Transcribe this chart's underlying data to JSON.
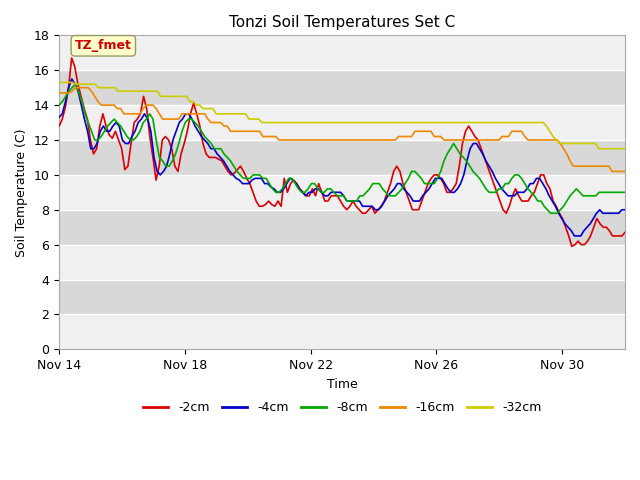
{
  "title": "Tonzi Soil Temperatures Set C",
  "xlabel": "Time",
  "ylabel": "Soil Temperature (C)",
  "annotation_text": "TZ_fmet",
  "annotation_color": "#cc0000",
  "annotation_bg": "#ffffcc",
  "annotation_border": "#999966",
  "ylim": [
    0,
    18
  ],
  "yticks": [
    0,
    2,
    4,
    6,
    8,
    10,
    12,
    14,
    16,
    18
  ],
  "xtick_labels": [
    "Nov 14",
    "Nov 18",
    "Nov 22",
    "Nov 26",
    "Nov 30"
  ],
  "xtick_positions": [
    0,
    4,
    8,
    12,
    16
  ],
  "legend_labels": [
    "-2cm",
    "-4cm",
    "-8cm",
    "-16cm",
    "-32cm"
  ],
  "legend_colors": [
    "#dd0000",
    "#0000cc",
    "#00aa00",
    "#ee8800",
    "#cccc00"
  ],
  "line_colors": [
    "#dd0000",
    "#0000cc",
    "#00aa00",
    "#ee8800",
    "#cccc00"
  ],
  "bg_color": "#ffffff",
  "plot_bg_light": "#f0f0f0",
  "plot_bg_dark": "#d8d8d8",
  "grid_color": "#ffffff",
  "band_pairs": [
    [
      0,
      2
    ],
    [
      4,
      6
    ],
    [
      8,
      10
    ],
    [
      12,
      14
    ],
    [
      16,
      18
    ]
  ],
  "dark_bands": [
    [
      2,
      4
    ],
    [
      6,
      8
    ],
    [
      10,
      12
    ],
    [
      14,
      16
    ]
  ],
  "total_days": 18,
  "series_2cm": [
    12.8,
    13.2,
    13.9,
    15.0,
    16.7,
    16.2,
    15.2,
    14.5,
    13.8,
    13.2,
    12.0,
    11.2,
    11.5,
    12.8,
    13.5,
    12.8,
    12.3,
    12.1,
    12.5,
    12.0,
    11.5,
    10.3,
    10.5,
    11.8,
    13.0,
    13.2,
    13.5,
    14.5,
    13.8,
    12.2,
    11.0,
    9.7,
    10.5,
    12.0,
    12.2,
    12.0,
    11.5,
    10.5,
    10.2,
    11.2,
    11.8,
    12.5,
    13.5,
    14.1,
    13.5,
    12.8,
    11.8,
    11.2,
    11.0,
    11.0,
    11.0,
    10.9,
    10.8,
    10.5,
    10.2,
    10.0,
    10.1,
    10.3,
    10.5,
    10.2,
    9.8,
    9.5,
    9.0,
    8.5,
    8.2,
    8.2,
    8.3,
    8.5,
    8.3,
    8.2,
    8.5,
    8.2,
    9.8,
    9.0,
    9.5,
    9.7,
    9.5,
    9.2,
    9.0,
    8.8,
    8.8,
    9.2,
    8.8,
    9.5,
    9.0,
    8.5,
    8.5,
    8.8,
    8.8,
    8.8,
    8.5,
    8.2,
    8.0,
    8.2,
    8.5,
    8.2,
    8.0,
    7.8,
    7.8,
    8.0,
    8.2,
    7.8,
    8.0,
    8.2,
    8.5,
    9.0,
    9.5,
    10.2,
    10.5,
    10.2,
    9.5,
    9.0,
    8.5,
    8.0,
    8.0,
    8.0,
    8.5,
    9.0,
    9.5,
    9.8,
    10.0,
    10.0,
    9.8,
    9.5,
    9.0,
    9.0,
    9.2,
    9.5,
    10.5,
    11.8,
    12.5,
    12.8,
    12.5,
    12.2,
    12.0,
    11.5,
    11.0,
    10.5,
    10.0,
    9.5,
    9.0,
    8.5,
    8.0,
    7.8,
    8.2,
    8.8,
    9.2,
    8.8,
    8.5,
    8.5,
    8.5,
    8.8,
    9.0,
    9.5,
    10.0,
    10.0,
    9.5,
    9.2,
    8.5,
    8.2,
    7.8,
    7.5,
    7.0,
    6.5,
    5.9,
    6.0,
    6.2,
    6.0,
    6.0,
    6.2,
    6.5,
    7.0,
    7.5,
    7.2,
    7.0,
    7.0,
    6.8,
    6.5,
    6.5,
    6.5,
    6.5,
    6.7
  ],
  "series_4cm": [
    13.3,
    13.5,
    14.2,
    15.0,
    15.5,
    15.2,
    14.8,
    14.0,
    13.2,
    12.5,
    11.5,
    11.5,
    11.8,
    12.5,
    12.8,
    12.5,
    12.5,
    12.8,
    13.0,
    12.8,
    12.0,
    11.8,
    11.8,
    12.2,
    12.5,
    13.0,
    13.2,
    13.5,
    13.2,
    12.5,
    11.0,
    10.2,
    10.0,
    10.2,
    10.5,
    11.2,
    12.0,
    12.5,
    13.0,
    13.2,
    13.5,
    13.5,
    13.2,
    12.8,
    12.5,
    12.2,
    12.0,
    11.8,
    11.5,
    11.5,
    11.2,
    11.0,
    10.8,
    10.5,
    10.2,
    10.0,
    9.8,
    9.7,
    9.5,
    9.5,
    9.5,
    9.7,
    9.8,
    9.8,
    9.8,
    9.5,
    9.5,
    9.3,
    9.2,
    9.0,
    9.0,
    9.2,
    9.5,
    9.8,
    9.7,
    9.5,
    9.2,
    9.0,
    8.8,
    9.0,
    9.0,
    9.2,
    9.2,
    9.0,
    8.8,
    8.8,
    9.0,
    9.0,
    9.0,
    9.0,
    8.8,
    8.5,
    8.5,
    8.5,
    8.5,
    8.5,
    8.2,
    8.2,
    8.2,
    8.2,
    8.0,
    8.0,
    8.2,
    8.5,
    8.8,
    9.0,
    9.2,
    9.5,
    9.5,
    9.2,
    9.0,
    8.8,
    8.5,
    8.5,
    8.5,
    8.8,
    9.0,
    9.2,
    9.5,
    9.8,
    9.8,
    9.8,
    9.5,
    9.2,
    9.0,
    9.0,
    9.2,
    9.5,
    10.0,
    10.8,
    11.5,
    11.8,
    11.8,
    11.5,
    11.2,
    10.8,
    10.5,
    10.2,
    9.8,
    9.5,
    9.2,
    9.0,
    8.8,
    8.8,
    8.8,
    9.0,
    9.0,
    9.0,
    9.2,
    9.5,
    9.5,
    9.8,
    9.8,
    9.5,
    9.2,
    8.8,
    8.5,
    8.2,
    7.8,
    7.5,
    7.2,
    7.0,
    6.8,
    6.5,
    6.5,
    6.5,
    6.8,
    7.0,
    7.2,
    7.5,
    7.8,
    8.0,
    7.8,
    7.8,
    7.8,
    7.8,
    7.8,
    7.8,
    8.0,
    8.0
  ],
  "series_8cm": [
    14.0,
    14.2,
    14.5,
    14.8,
    15.0,
    15.2,
    14.8,
    14.2,
    13.5,
    13.0,
    12.5,
    12.0,
    12.0,
    12.2,
    12.5,
    12.8,
    13.0,
    13.2,
    13.0,
    12.8,
    12.5,
    12.2,
    12.0,
    12.0,
    12.2,
    12.5,
    13.0,
    13.2,
    13.5,
    13.2,
    12.0,
    11.0,
    10.8,
    10.5,
    10.5,
    10.8,
    11.2,
    11.8,
    12.5,
    13.0,
    13.2,
    13.2,
    13.0,
    12.8,
    12.5,
    12.2,
    12.0,
    11.8,
    11.5,
    11.5,
    11.5,
    11.2,
    11.0,
    10.8,
    10.5,
    10.2,
    10.0,
    9.8,
    9.8,
    9.8,
    10.0,
    10.0,
    10.0,
    9.8,
    9.8,
    9.5,
    9.2,
    9.0,
    9.0,
    9.2,
    9.5,
    9.8,
    9.8,
    9.5,
    9.2,
    9.0,
    9.0,
    9.2,
    9.5,
    9.5,
    9.2,
    9.0,
    9.0,
    9.2,
    9.2,
    9.0,
    8.8,
    8.8,
    8.8,
    8.5,
    8.5,
    8.5,
    8.5,
    8.8,
    8.8,
    9.0,
    9.2,
    9.5,
    9.5,
    9.5,
    9.2,
    9.0,
    8.8,
    8.8,
    8.8,
    9.0,
    9.2,
    9.5,
    9.8,
    10.2,
    10.2,
    10.0,
    9.8,
    9.5,
    9.5,
    9.5,
    9.5,
    9.8,
    10.2,
    10.8,
    11.2,
    11.5,
    11.8,
    11.5,
    11.2,
    11.0,
    10.8,
    10.5,
    10.2,
    10.0,
    9.8,
    9.5,
    9.2,
    9.0,
    9.0,
    9.0,
    9.2,
    9.2,
    9.5,
    9.5,
    9.8,
    10.0,
    10.0,
    9.8,
    9.5,
    9.2,
    9.0,
    8.8,
    8.5,
    8.5,
    8.2,
    8.0,
    7.8,
    7.8,
    7.8,
    8.0,
    8.2,
    8.5,
    8.8,
    9.0,
    9.2,
    9.0,
    8.8,
    8.8,
    8.8,
    8.8,
    8.8,
    9.0,
    9.0,
    9.0,
    9.0,
    9.0,
    9.0,
    9.0,
    9.0,
    9.0
  ],
  "series_16cm": [
    14.7,
    14.7,
    14.7,
    14.7,
    14.8,
    15.0,
    15.0,
    15.0,
    15.0,
    15.0,
    14.8,
    14.5,
    14.2,
    14.0,
    14.0,
    14.0,
    14.0,
    14.0,
    13.8,
    13.8,
    13.5,
    13.5,
    13.5,
    13.5,
    13.5,
    13.5,
    13.8,
    14.0,
    14.0,
    14.0,
    13.8,
    13.5,
    13.2,
    13.2,
    13.2,
    13.2,
    13.2,
    13.2,
    13.5,
    13.5,
    13.5,
    13.5,
    13.5,
    13.5,
    13.5,
    13.5,
    13.2,
    13.0,
    13.0,
    13.0,
    13.0,
    12.8,
    12.8,
    12.5,
    12.5,
    12.5,
    12.5,
    12.5,
    12.5,
    12.5,
    12.5,
    12.5,
    12.5,
    12.2,
    12.2,
    12.2,
    12.2,
    12.2,
    12.0,
    12.0,
    12.0,
    12.0,
    12.0,
    12.0,
    12.0,
    12.0,
    12.0,
    12.0,
    12.0,
    12.0,
    12.0,
    12.0,
    12.0,
    12.0,
    12.0,
    12.0,
    12.0,
    12.0,
    12.0,
    12.0,
    12.0,
    12.0,
    12.0,
    12.0,
    12.0,
    12.0,
    12.0,
    12.0,
    12.0,
    12.0,
    12.0,
    12.0,
    12.0,
    12.0,
    12.0,
    12.2,
    12.2,
    12.2,
    12.2,
    12.2,
    12.5,
    12.5,
    12.5,
    12.5,
    12.5,
    12.5,
    12.2,
    12.2,
    12.2,
    12.0,
    12.0,
    12.0,
    12.0,
    12.0,
    12.0,
    12.0,
    12.0,
    12.0,
    12.0,
    12.0,
    12.0,
    12.0,
    12.0,
    12.0,
    12.0,
    12.0,
    12.0,
    12.2,
    12.2,
    12.2,
    12.5,
    12.5,
    12.5,
    12.5,
    12.2,
    12.0,
    12.0,
    12.0,
    12.0,
    12.0,
    12.0,
    12.0,
    12.0,
    12.0,
    12.0,
    11.8,
    11.5,
    11.2,
    10.8,
    10.5,
    10.5,
    10.5,
    10.5,
    10.5,
    10.5,
    10.5,
    10.5,
    10.5,
    10.5,
    10.5,
    10.5,
    10.2,
    10.2,
    10.2,
    10.2,
    10.2
  ],
  "series_32cm": [
    15.3,
    15.3,
    15.3,
    15.3,
    15.3,
    15.2,
    15.2,
    15.2,
    15.2,
    15.2,
    15.2,
    15.2,
    15.0,
    15.0,
    15.0,
    15.0,
    15.0,
    15.0,
    14.8,
    14.8,
    14.8,
    14.8,
    14.8,
    14.8,
    14.8,
    14.8,
    14.8,
    14.8,
    14.8,
    14.8,
    14.8,
    14.5,
    14.5,
    14.5,
    14.5,
    14.5,
    14.5,
    14.5,
    14.5,
    14.5,
    14.2,
    14.2,
    14.0,
    14.0,
    13.8,
    13.8,
    13.8,
    13.8,
    13.5,
    13.5,
    13.5,
    13.5,
    13.5,
    13.5,
    13.5,
    13.5,
    13.5,
    13.5,
    13.2,
    13.2,
    13.2,
    13.2,
    13.0,
    13.0,
    13.0,
    13.0,
    13.0,
    13.0,
    13.0,
    13.0,
    13.0,
    13.0,
    13.0,
    13.0,
    13.0,
    13.0,
    13.0,
    13.0,
    13.0,
    13.0,
    13.0,
    13.0,
    13.0,
    13.0,
    13.0,
    13.0,
    13.0,
    13.0,
    13.0,
    13.0,
    13.0,
    13.0,
    13.0,
    13.0,
    13.0,
    13.0,
    13.0,
    13.0,
    13.0,
    13.0,
    13.0,
    13.0,
    13.0,
    13.0,
    13.0,
    13.0,
    13.0,
    13.0,
    13.0,
    13.0,
    13.0,
    13.0,
    13.0,
    13.0,
    13.0,
    13.0,
    13.0,
    13.0,
    13.0,
    13.0,
    13.0,
    13.0,
    13.0,
    13.0,
    13.0,
    13.0,
    13.0,
    13.0,
    13.0,
    13.0,
    13.0,
    13.0,
    13.0,
    13.0,
    13.0,
    13.0,
    13.0,
    13.0,
    13.0,
    13.0,
    13.0,
    13.0,
    13.0,
    13.0,
    13.0,
    13.0,
    13.0,
    13.0,
    13.0,
    12.8,
    12.5,
    12.2,
    12.0,
    11.8,
    11.8,
    11.8,
    11.8,
    11.8,
    11.8,
    11.8,
    11.8,
    11.8,
    11.8,
    11.8,
    11.8,
    11.5,
    11.5,
    11.5,
    11.5,
    11.5,
    11.5,
    11.5,
    11.5,
    11.5
  ]
}
